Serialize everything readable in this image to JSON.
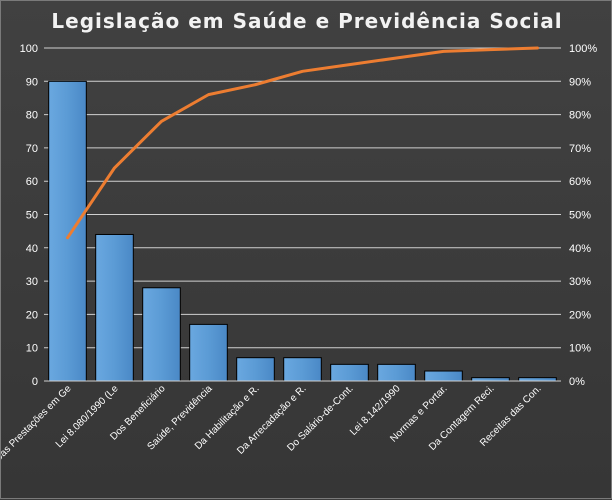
{
  "chart_data": {
    "type": "bar",
    "title": "Legislação  em Saúde  e Previdência  Social",
    "categories": [
      "Das Prestações em Ge",
      "Lei 8.080/1990 (Le",
      "Dos Beneficiário",
      "Saúde, Previdência",
      "Da Habilitação e R.",
      "Da Arrecadação e R.",
      "Do Salário-de-Cont.",
      "Lei 8.142/1990",
      "Normas e Portar.",
      "Da Contagem Reci.",
      "Receitas das Con."
    ],
    "series": [
      {
        "type": "bar",
        "values": [
          90,
          44,
          28,
          17,
          7,
          7,
          5,
          5,
          3,
          1,
          1
        ]
      },
      {
        "type": "line",
        "axis": "secondary",
        "values": [
          43,
          64,
          78,
          86,
          89,
          93,
          95,
          97,
          99,
          99.5,
          100
        ]
      }
    ],
    "ylim": [
      0,
      100
    ],
    "y_ticks": [
      "0",
      "10",
      "20",
      "30",
      "40",
      "50",
      "60",
      "70",
      "80",
      "90",
      "100"
    ],
    "y2lim": [
      0,
      100
    ],
    "y2_ticks": [
      "0%",
      "10%",
      "20%",
      "30%",
      "40%",
      "50%",
      "60%",
      "70%",
      "80%",
      "90%",
      "100%"
    ],
    "grid": true,
    "colors": {
      "bar": "#5b9bd5",
      "bar_edge": "#000000",
      "line": "#ed7d31",
      "grid": "#d0d0d0",
      "text": "#ffffff"
    }
  }
}
